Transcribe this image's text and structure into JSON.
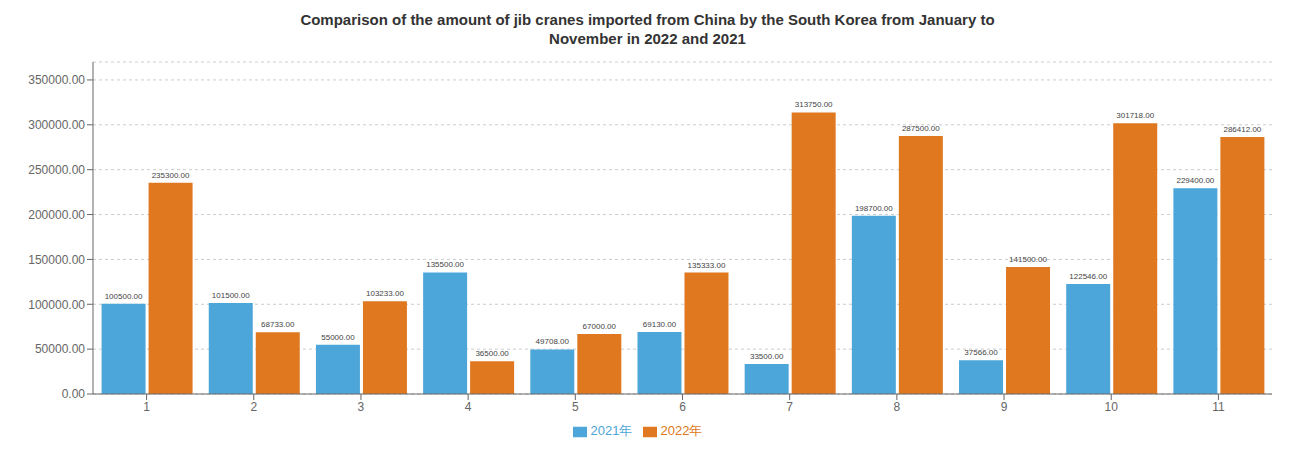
{
  "chart_data": {
    "type": "bar",
    "title": "Comparison of the amount of jib cranes imported from China by the South Korea from January to\nNovember in 2022 and 2021",
    "categories": [
      "1",
      "2",
      "3",
      "4",
      "5",
      "6",
      "7",
      "8",
      "9",
      "10",
      "11"
    ],
    "series": [
      {
        "name": "2021年",
        "color": "#4da6d9",
        "values": [
          100500,
          101500,
          55000,
          135500,
          49708,
          69130,
          33500,
          198700,
          37566,
          122546,
          229400
        ],
        "value_labels": [
          "100500.00",
          "101500.00",
          "55000.00",
          "135500.00",
          "49708.00",
          "69130.00",
          "33500.00",
          "198700.00",
          "37566.00",
          "122546.00",
          "229400.00"
        ]
      },
      {
        "name": "2022年",
        "color": "#e07820",
        "values": [
          235300,
          68733,
          103233,
          36500,
          67000,
          135333,
          313750,
          287500,
          141500,
          301718,
          286412
        ],
        "value_labels": [
          "235300.00",
          "68733.00",
          "103233.00",
          "36500.00",
          "67000.00",
          "135333.00",
          "313750.00",
          "287500.00",
          "141500.00",
          "301718.00",
          "286412.00"
        ]
      }
    ],
    "ylim": [
      0,
      370000
    ],
    "yticks": [
      {
        "value": 0,
        "label": "0.00"
      },
      {
        "value": 50000,
        "label": "50000.00"
      },
      {
        "value": 100000,
        "label": "100000.00"
      },
      {
        "value": 150000,
        "label": "150000.00"
      },
      {
        "value": 200000,
        "label": "200000.00"
      },
      {
        "value": 250000,
        "label": "250000.00"
      },
      {
        "value": 300000,
        "label": "300000.00"
      },
      {
        "value": 350000,
        "label": "350000.00"
      }
    ],
    "grid": true,
    "legend": "bottom",
    "data_labels": true
  }
}
